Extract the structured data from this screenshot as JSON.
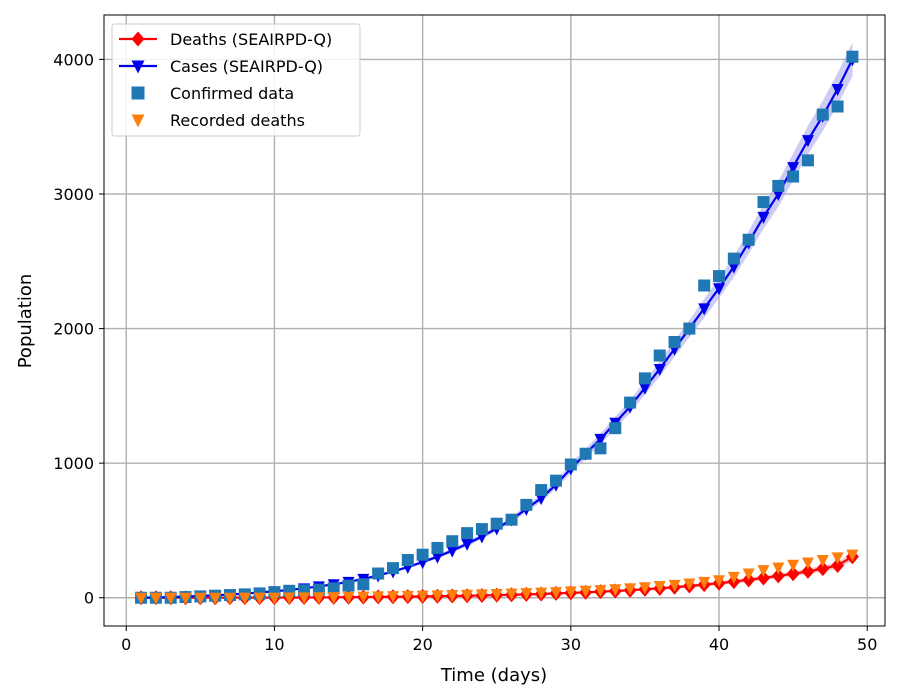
{
  "chart_data": {
    "type": "line",
    "title": "",
    "xlabel": "Time (days)",
    "ylabel": "Population",
    "xlim": [
      -1.5,
      51.2
    ],
    "ylim": [
      -210,
      4330
    ],
    "xticks": [
      0,
      10,
      20,
      30,
      40,
      50
    ],
    "yticks": [
      0,
      1000,
      2000,
      3000,
      4000
    ],
    "grid": true,
    "legend_position": "top-left",
    "colors": {
      "deaths_model": "#ff0000",
      "cases_model": "#0000ee",
      "cases_band": "#aaaaf0",
      "deaths_band": "#f5a0a0",
      "confirmed": "#1f77b4",
      "recorded_deaths": "#ff7f0e",
      "grid": "#b0b0b0"
    },
    "series": [
      {
        "name": "Deaths (SEAIRPD-Q)",
        "kind": "model-line",
        "marker": "diamond",
        "x": [
          1,
          2,
          3,
          4,
          5,
          6,
          7,
          8,
          9,
          10,
          11,
          12,
          13,
          14,
          15,
          16,
          17,
          18,
          19,
          20,
          21,
          22,
          23,
          24,
          25,
          26,
          27,
          28,
          29,
          30,
          31,
          32,
          33,
          34,
          35,
          36,
          37,
          38,
          39,
          40,
          41,
          42,
          43,
          44,
          45,
          46,
          47,
          48,
          49
        ],
        "values": [
          0,
          0,
          0,
          0,
          0,
          0,
          1,
          1,
          1,
          1,
          2,
          2,
          3,
          3,
          4,
          5,
          6,
          7,
          8,
          10,
          11,
          13,
          15,
          17,
          19,
          22,
          25,
          28,
          32,
          36,
          40,
          45,
          50,
          56,
          63,
          70,
          78,
          87,
          97,
          108,
          120,
          133,
          147,
          162,
          178,
          196,
          216,
          240,
          305
        ]
      },
      {
        "name": "Cases (SEAIRPD-Q)",
        "kind": "model-line",
        "marker": "triangle-down",
        "x": [
          1,
          2,
          3,
          4,
          5,
          6,
          7,
          8,
          9,
          10,
          11,
          12,
          13,
          14,
          15,
          16,
          17,
          18,
          19,
          20,
          21,
          22,
          23,
          24,
          25,
          26,
          27,
          28,
          29,
          30,
          31,
          32,
          33,
          34,
          35,
          36,
          37,
          38,
          39,
          40,
          41,
          42,
          43,
          44,
          45,
          46,
          47,
          48,
          49
        ],
        "values": [
          0,
          2,
          5,
          9,
          13,
          18,
          24,
          31,
          39,
          48,
          58,
          70,
          84,
          100,
          118,
          140,
          165,
          195,
          228,
          265,
          305,
          350,
          400,
          455,
          515,
          580,
          660,
          740,
          840,
          960,
          1070,
          1180,
          1300,
          1420,
          1560,
          1700,
          1850,
          2000,
          2150,
          2300,
          2460,
          2640,
          2830,
          3000,
          3200,
          3400,
          3580,
          3780,
          4000
        ]
      },
      {
        "name": "Confirmed data",
        "kind": "scatter",
        "marker": "square",
        "x": [
          1,
          2,
          3,
          4,
          5,
          6,
          7,
          8,
          9,
          10,
          11,
          12,
          13,
          14,
          15,
          16,
          17,
          18,
          19,
          20,
          21,
          22,
          23,
          24,
          25,
          26,
          27,
          28,
          29,
          30,
          31,
          32,
          33,
          34,
          35,
          36,
          37,
          38,
          39,
          40,
          41,
          42,
          43,
          44,
          45,
          46,
          47,
          48,
          49
        ],
        "values": [
          0,
          0,
          0,
          5,
          10,
          15,
          20,
          25,
          30,
          40,
          50,
          55,
          60,
          70,
          90,
          100,
          180,
          220,
          280,
          320,
          370,
          420,
          480,
          510,
          550,
          580,
          690,
          800,
          870,
          990,
          1070,
          1110,
          1260,
          1450,
          1630,
          1800,
          1900,
          2000,
          2320,
          2390,
          2520,
          2660,
          2940,
          3060,
          3130,
          3250,
          3590,
          3650,
          4020
        ]
      },
      {
        "name": "Recorded deaths",
        "kind": "scatter",
        "marker": "triangle-down",
        "x": [
          1,
          2,
          3,
          4,
          5,
          6,
          7,
          8,
          9,
          10,
          11,
          12,
          13,
          14,
          15,
          16,
          17,
          18,
          19,
          20,
          21,
          22,
          23,
          24,
          25,
          26,
          27,
          28,
          29,
          30,
          31,
          32,
          33,
          34,
          35,
          36,
          37,
          38,
          39,
          40,
          41,
          42,
          43,
          44,
          45,
          46,
          47,
          48,
          49
        ],
        "values": [
          0,
          0,
          0,
          0,
          0,
          0,
          0,
          1,
          1,
          1,
          2,
          3,
          4,
          5,
          6,
          8,
          10,
          12,
          14,
          16,
          18,
          20,
          22,
          25,
          28,
          31,
          34,
          38,
          42,
          47,
          52,
          57,
          63,
          70,
          78,
          87,
          96,
          106,
          118,
          130,
          155,
          180,
          205,
          225,
          245,
          262,
          280,
          300,
          320
        ]
      }
    ]
  }
}
